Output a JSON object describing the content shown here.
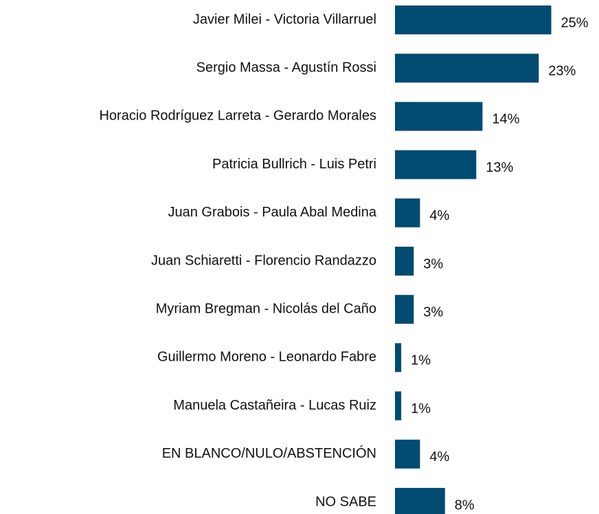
{
  "chart_data": {
    "type": "hbar",
    "categories": [
      "Javier Milei - Victoria Villarruel",
      "Sergio Massa - Agustín Rossi",
      "Horacio Rodríguez Larreta - Gerardo Morales",
      "Patricia Bullrich - Luis Petri",
      "Juan Grabois - Paula Abal Medina",
      "Juan Schiaretti - Florencio Randazzo",
      "Myriam Bregman - Nicolás del Caño",
      "Guillermo Moreno - Leonardo Fabre",
      "Manuela Castañeira - Lucas Ruiz",
      "EN BLANCO/NULO/ABSTENCIÓN",
      "NO SABE"
    ],
    "values": [
      25,
      23,
      14,
      13,
      4,
      3,
      3,
      1,
      1,
      4,
      8
    ],
    "value_labels": [
      "25%",
      "23%",
      "14%",
      "13%",
      "4%",
      "3%",
      "3%",
      "1%",
      "1%",
      "4%",
      "8%"
    ],
    "color": "#004b71"
  }
}
